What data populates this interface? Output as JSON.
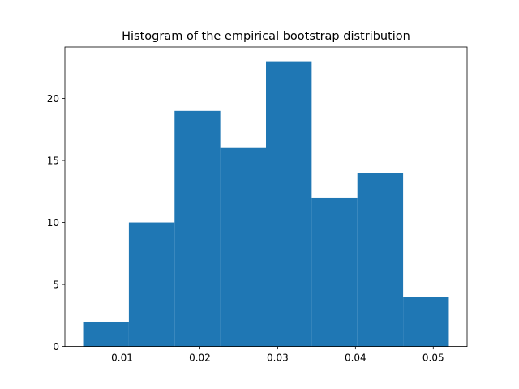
{
  "chart_data": {
    "type": "bar",
    "title": "Histogram of the empirical bootstrap distribution",
    "xlabel": "",
    "ylabel": "",
    "bin_edges": [
      0.005,
      0.010875,
      0.01675,
      0.022625,
      0.0285,
      0.034375,
      0.04025,
      0.046125,
      0.052
    ],
    "values": [
      2,
      10,
      19,
      16,
      23,
      12,
      14,
      4
    ],
    "xlim": [
      0.00265,
      0.05435
    ],
    "ylim": [
      0,
      24.15
    ],
    "xticks": [
      0.01,
      0.02,
      0.03,
      0.04,
      0.05
    ],
    "xtick_labels": [
      "0.01",
      "0.02",
      "0.03",
      "0.04",
      "0.05"
    ],
    "yticks": [
      0,
      5,
      10,
      15,
      20
    ],
    "ytick_labels": [
      "0",
      "5",
      "10",
      "15",
      "20"
    ],
    "bar_color": "#1f77b4",
    "grid": false,
    "legend": "none"
  }
}
